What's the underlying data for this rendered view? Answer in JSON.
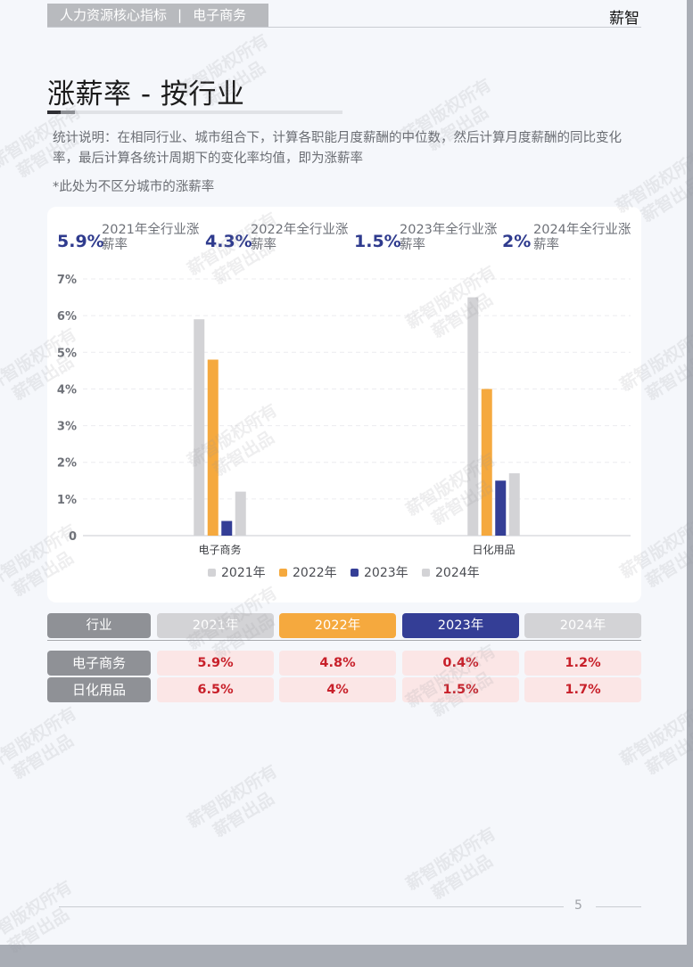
{
  "header": {
    "crumb_1": "人力资源核心指标",
    "crumb_sep": "|",
    "crumb_2": "电子商务",
    "brand": "薪智"
  },
  "page_title": "涨薪率 - 按行业",
  "description": "统计说明：在相同行业、城市组合下，计算各职能月度薪酬的中位数，然后计算月度薪酬的同比变化率，最后计算各统计周期下的变化率均值，即为涨薪率",
  "note": "*此处为不区分城市的涨薪率",
  "kpis": [
    {
      "value": "5.9%",
      "label": "2021年全行业涨薪率"
    },
    {
      "value": "4.3%",
      "label": "2022年全行业涨薪率"
    },
    {
      "value": "1.5%",
      "label": "2023年全行业涨薪率"
    },
    {
      "value": "2%",
      "label": "2024年全行业涨薪率"
    }
  ],
  "colors": {
    "s2021": "#d3d3d6",
    "s2022": "#f5a93e",
    "s2023": "#343e96",
    "s2024": "#d3d3d6"
  },
  "chart_data": {
    "type": "bar",
    "categories": [
      "电子商务",
      "日化用品"
    ],
    "series": [
      {
        "name": "2021年",
        "values": [
          5.9,
          6.5
        ]
      },
      {
        "name": "2022年",
        "values": [
          4.8,
          4.0
        ]
      },
      {
        "name": "2023年",
        "values": [
          0.4,
          1.5
        ]
      },
      {
        "name": "2024年",
        "values": [
          1.2,
          1.7
        ]
      }
    ],
    "ylim": [
      0,
      7
    ],
    "yticks": [
      "0",
      "1%",
      "2%",
      "3%",
      "4%",
      "5%",
      "6%",
      "7%"
    ],
    "grid": true,
    "legend": "bottom"
  },
  "table": {
    "headers": [
      "行业",
      "2021年",
      "2022年",
      "2023年",
      "2024年"
    ],
    "rows": [
      {
        "name": "电子商务",
        "cells": [
          "5.9%",
          "4.8%",
          "0.4%",
          "1.2%"
        ]
      },
      {
        "name": "日化用品",
        "cells": [
          "6.5%",
          "4%",
          "1.5%",
          "1.7%"
        ]
      }
    ]
  },
  "watermark": {
    "line1": "薪智版权所有",
    "line2": "薪智出品"
  },
  "page_number": "5"
}
